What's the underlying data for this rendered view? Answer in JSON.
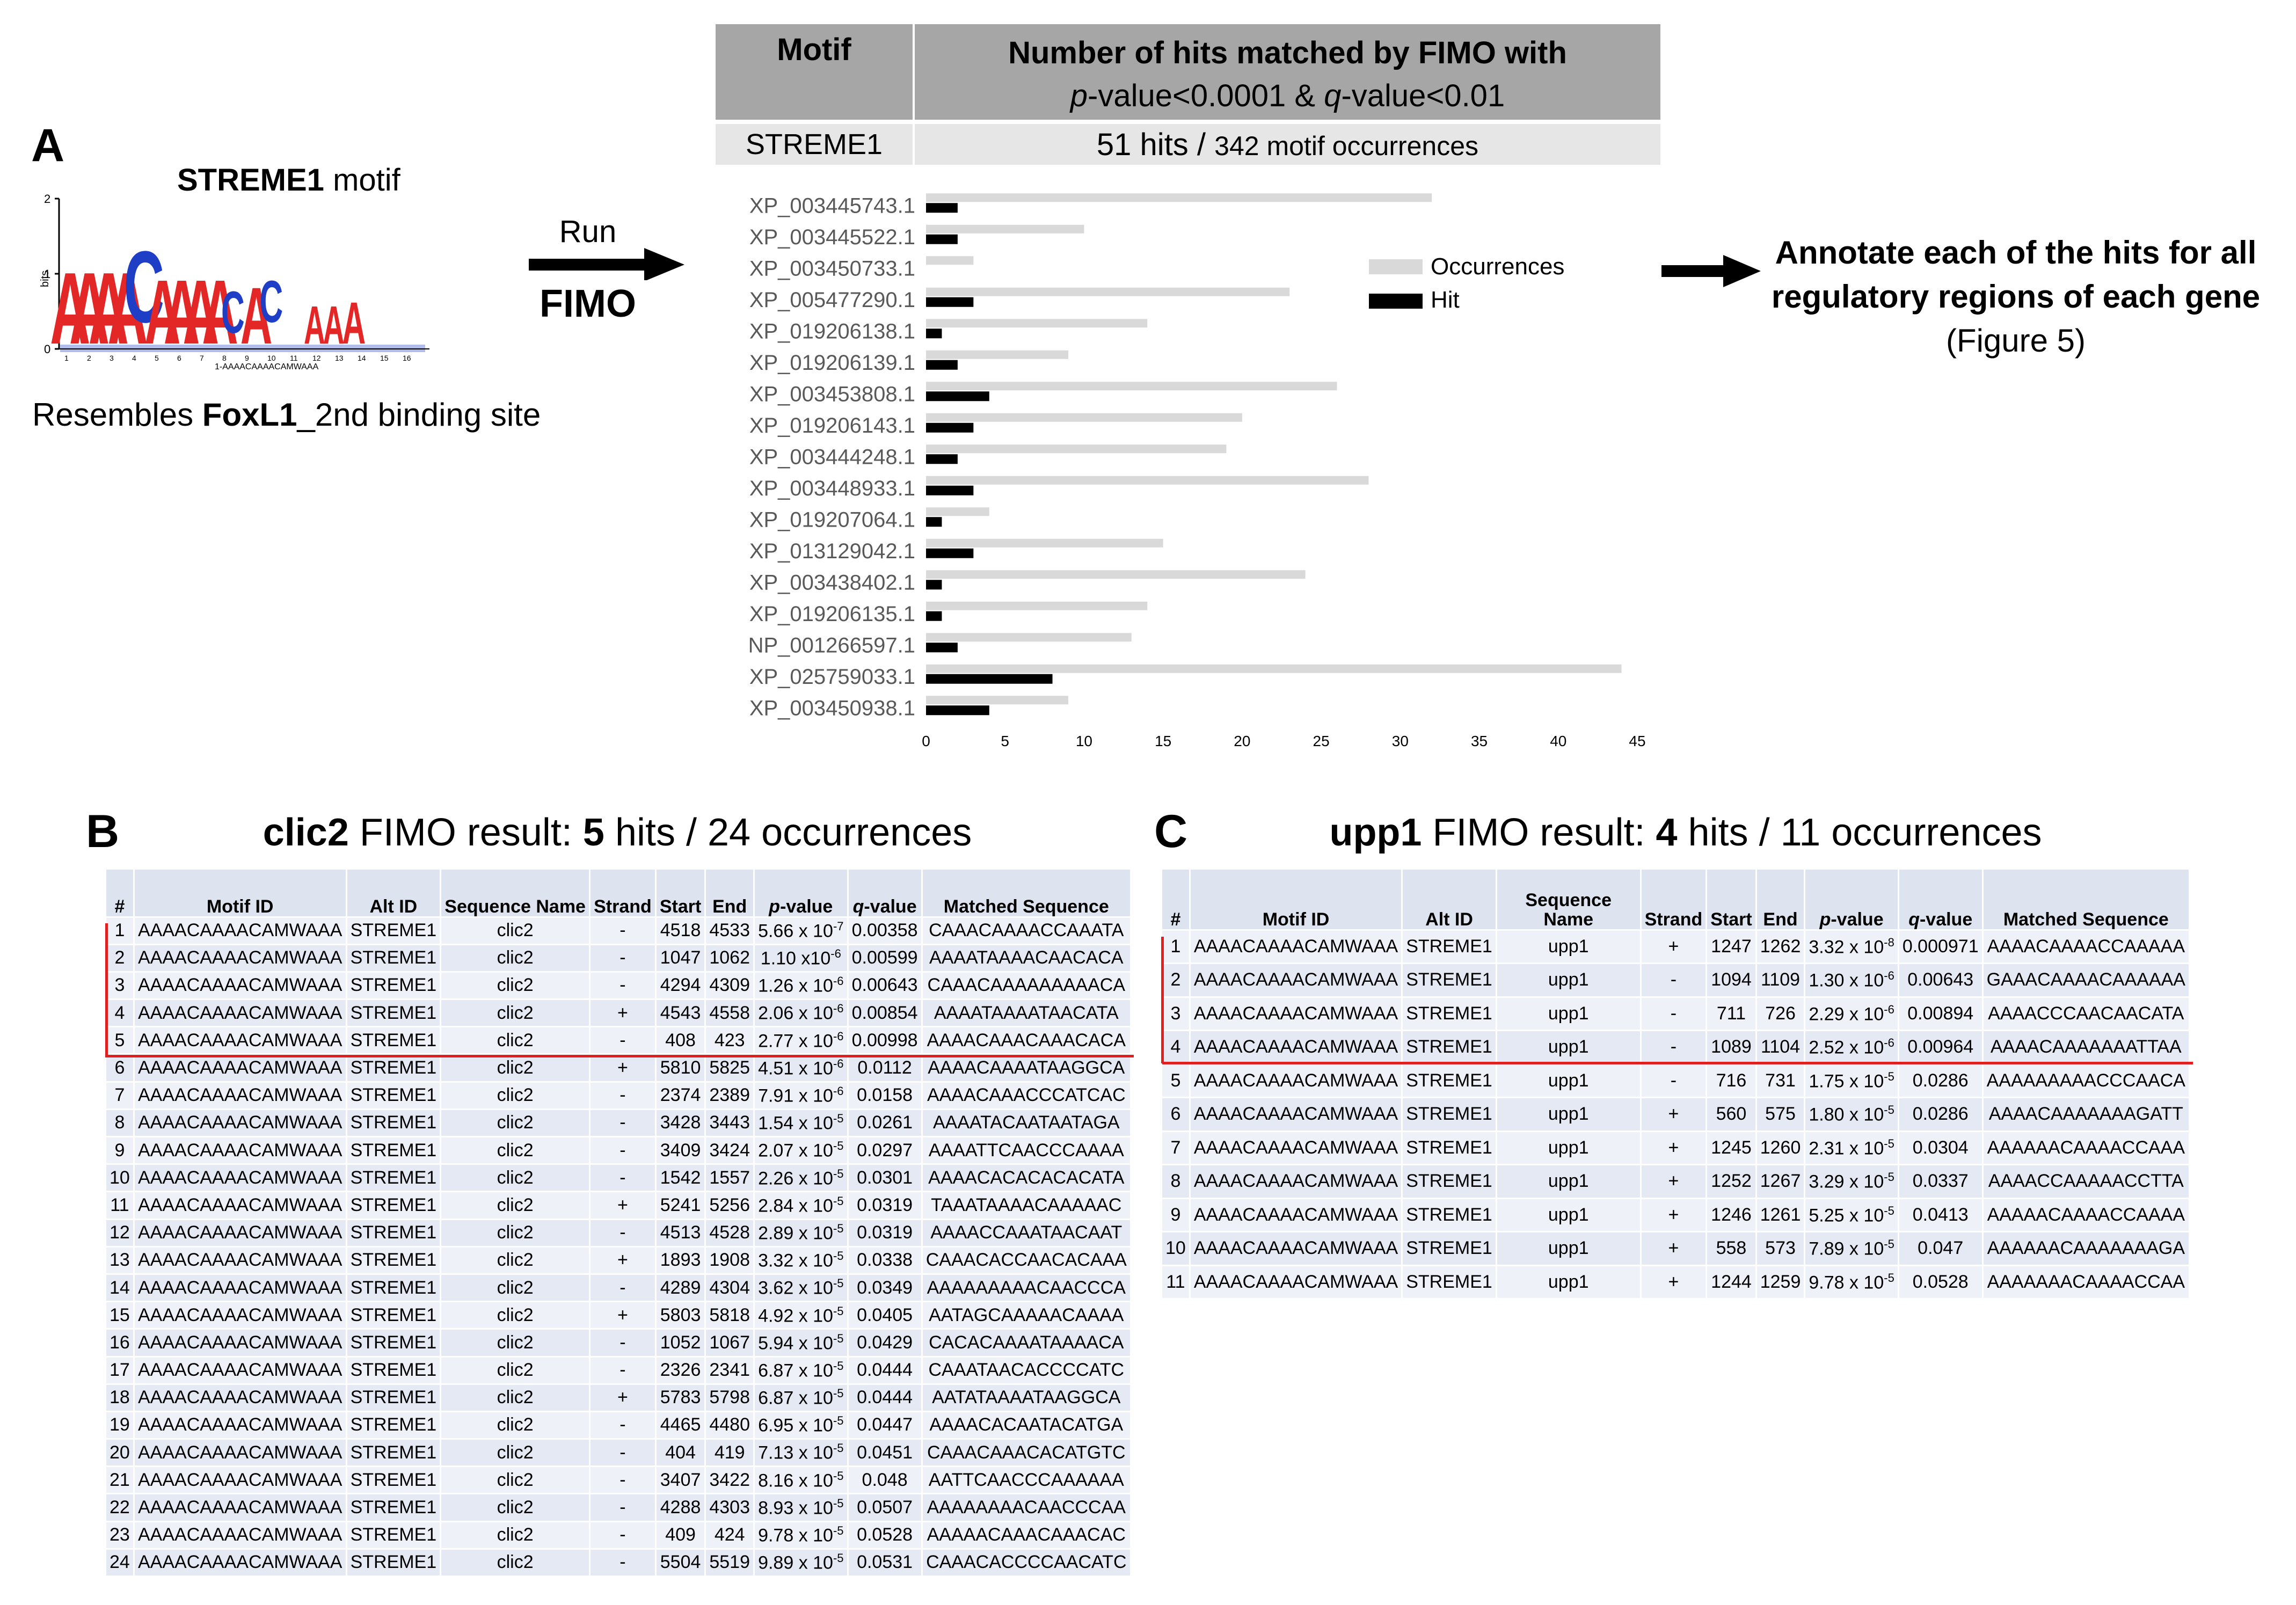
{
  "panel_a": {
    "letter": "A",
    "logo_title_bold": "STREME1",
    "logo_title_rest": " motif",
    "logo_consensus": "1-AAAACAAAACAMWAAA",
    "logo_ylabel": "bits",
    "logo_yticks": [
      "2",
      "1",
      "0"
    ],
    "logo_xticks": [
      "1",
      "2",
      "3",
      "4",
      "5",
      "6",
      "7",
      "8",
      "9",
      "10",
      "11",
      "12",
      "13",
      "14",
      "15",
      "16"
    ],
    "resembles_prefix": "Resembles ",
    "resembles_bold": "FoxL1",
    "resembles_suffix": "_2nd binding site",
    "run_label": "Run",
    "fimo_label": "FIMO",
    "annotate_line1": "Annotate each of the hits for all",
    "annotate_line2": "regulatory regions of each gene",
    "annotate_line3": "(Figure 5)"
  },
  "summary_table": {
    "col1_header": "Motif",
    "col2_header_line1": "Number of hits matched by FIMO with",
    "col2_header_line2_p": "p",
    "col2_header_line2_a": "-value<0.0001 & ",
    "col2_header_line2_q": "q",
    "col2_header_line2_b": "-value<0.01",
    "row_motif": "STREME1",
    "row_hits": "51 hits / ",
    "row_occ": "342 motif occurrences"
  },
  "chart_data": {
    "type": "bar",
    "orientation": "horizontal",
    "categories": [
      "XP_003445743.1",
      "XP_003445522.1",
      "XP_003450733.1",
      "XP_005477290.1",
      "XP_019206138.1",
      "XP_019206139.1",
      "XP_003453808.1",
      "XP_019206143.1",
      "XP_003444248.1",
      "XP_003448933.1",
      "XP_019207064.1",
      "XP_013129042.1",
      "XP_003438402.1",
      "XP_019206135.1",
      "NP_001266597.1",
      "XP_025759033.1",
      "XP_003450938.1"
    ],
    "series": [
      {
        "name": "Occurrences",
        "color": "#d9d9d9",
        "values": [
          32,
          10,
          3,
          23,
          14,
          9,
          26,
          20,
          19,
          28,
          4,
          15,
          24,
          14,
          13,
          44,
          9
        ]
      },
      {
        "name": "Hit",
        "color": "#000000",
        "values": [
          2,
          2,
          0,
          3,
          1,
          2,
          4,
          3,
          2,
          3,
          1,
          3,
          1,
          1,
          2,
          8,
          4
        ]
      }
    ],
    "xlim": [
      0,
      45
    ],
    "xticks": [
      0,
      5,
      10,
      15,
      20,
      25,
      30,
      35,
      40,
      45
    ],
    "legend_position": "right",
    "grid": false
  },
  "panel_b": {
    "letter": "B",
    "title_bold1": "clic2",
    "title_mid": " FIMO result: ",
    "title_bold2": "5",
    "title_end": " hits / 24 occurrences",
    "headers": [
      "#",
      "Motif ID",
      "Alt ID",
      "Sequence Name",
      "Strand",
      "Start",
      "End",
      "p-value",
      "q-value",
      "Matched Sequence"
    ],
    "rows": [
      [
        "1",
        "AAAACAAAACAMWAAA",
        "STREME1",
        "clic2",
        "-",
        "4518",
        "4533",
        "5.66 x 10-7",
        "0.00358",
        "CAAACAAAACCAAATA"
      ],
      [
        "2",
        "AAAACAAAACAMWAAA",
        "STREME1",
        "clic2",
        "-",
        "1047",
        "1062",
        "1.10 x10-6",
        "0.00599",
        "AAAATAAAACAACACA"
      ],
      [
        "3",
        "AAAACAAAACAMWAAA",
        "STREME1",
        "clic2",
        "-",
        "4294",
        "4309",
        "1.26 x 10-6",
        "0.00643",
        "CAAACAAAAAAAAACA"
      ],
      [
        "4",
        "AAAACAAAACAMWAAA",
        "STREME1",
        "clic2",
        "+",
        "4543",
        "4558",
        "2.06 x 10-6",
        "0.00854",
        "AAAATAAAATAACATA"
      ],
      [
        "5",
        "AAAACAAAACAMWAAA",
        "STREME1",
        "clic2",
        "-",
        "408",
        "423",
        "2.77 x 10-6",
        "0.00998",
        "AAAACAAACAAACACA"
      ],
      [
        "6",
        "AAAACAAAACAMWAAA",
        "STREME1",
        "clic2",
        "+",
        "5810",
        "5825",
        "4.51 x 10-6",
        "0.0112",
        "AAAACAAAATAAGGCA"
      ],
      [
        "7",
        "AAAACAAAACAMWAAA",
        "STREME1",
        "clic2",
        "-",
        "2374",
        "2389",
        "7.91 x 10-6",
        "0.0158",
        "AAAACAAACCCATCAC"
      ],
      [
        "8",
        "AAAACAAAACAMWAAA",
        "STREME1",
        "clic2",
        "-",
        "3428",
        "3443",
        "1.54 x 10-5",
        "0.0261",
        "AAAATACAATAATAGA"
      ],
      [
        "9",
        "AAAACAAAACAMWAAA",
        "STREME1",
        "clic2",
        "-",
        "3409",
        "3424",
        "2.07 x 10-5",
        "0.0297",
        "AAAATTCAACCCAAAA"
      ],
      [
        "10",
        "AAAACAAAACAMWAAA",
        "STREME1",
        "clic2",
        "-",
        "1542",
        "1557",
        "2.26 x 10-5",
        "0.0301",
        "AAAACACACACACATA"
      ],
      [
        "11",
        "AAAACAAAACAMWAAA",
        "STREME1",
        "clic2",
        "+",
        "5241",
        "5256",
        "2.84 x 10-5",
        "0.0319",
        "TAAATAAAACAAAAAC"
      ],
      [
        "12",
        "AAAACAAAACAMWAAA",
        "STREME1",
        "clic2",
        "-",
        "4513",
        "4528",
        "2.89 x 10-5",
        "0.0319",
        "AAAACCAAATAACAAT"
      ],
      [
        "13",
        "AAAACAAAACAMWAAA",
        "STREME1",
        "clic2",
        "+",
        "1893",
        "1908",
        "3.32 x 10-5",
        "0.0338",
        "CAAACACCAACACAAA"
      ],
      [
        "14",
        "AAAACAAAACAMWAAA",
        "STREME1",
        "clic2",
        "-",
        "4289",
        "4304",
        "3.62 x 10-5",
        "0.0349",
        "AAAAAAAAACAACCCA"
      ],
      [
        "15",
        "AAAACAAAACAMWAAA",
        "STREME1",
        "clic2",
        "+",
        "5803",
        "5818",
        "4.92 x 10-5",
        "0.0405",
        "AATAGCAAAAACAAAA"
      ],
      [
        "16",
        "AAAACAAAACAMWAAA",
        "STREME1",
        "clic2",
        "-",
        "1052",
        "1067",
        "5.94 x 10-5",
        "0.0429",
        "CACACAAAATAAAACA"
      ],
      [
        "17",
        "AAAACAAAACAMWAAA",
        "STREME1",
        "clic2",
        "-",
        "2326",
        "2341",
        "6.87 x 10-5",
        "0.0444",
        "CAAATAACACCCCATC"
      ],
      [
        "18",
        "AAAACAAAACAMWAAA",
        "STREME1",
        "clic2",
        "+",
        "5783",
        "5798",
        "6.87 x 10-5",
        "0.0444",
        "AATATAAAATAAGGCA"
      ],
      [
        "19",
        "AAAACAAAACAMWAAA",
        "STREME1",
        "clic2",
        "-",
        "4465",
        "4480",
        "6.95 x 10-5",
        "0.0447",
        "AAAACACAATACATGA"
      ],
      [
        "20",
        "AAAACAAAACAMWAAA",
        "STREME1",
        "clic2",
        "-",
        "404",
        "419",
        "7.13 x 10-5",
        "0.0451",
        "CAAACAAACACATGTC"
      ],
      [
        "21",
        "AAAACAAAACAMWAAA",
        "STREME1",
        "clic2",
        "-",
        "3407",
        "3422",
        "8.16 x 10-5",
        "0.048",
        "AATTCAACCCAAAAAA"
      ],
      [
        "22",
        "AAAACAAAACAMWAAA",
        "STREME1",
        "clic2",
        "-",
        "4288",
        "4303",
        "8.93 x 10-5",
        "0.0507",
        "AAAAAAAACAACCCAA"
      ],
      [
        "23",
        "AAAACAAAACAMWAAA",
        "STREME1",
        "clic2",
        "-",
        "409",
        "424",
        "9.78 x 10-5",
        "0.0528",
        "AAAAACAAACAAACAC"
      ],
      [
        "24",
        "AAAACAAAACAMWAAA",
        "STREME1",
        "clic2",
        "-",
        "5504",
        "5519",
        "9.89 x 10-5",
        "0.0531",
        "CAAACACCCCAACATC"
      ]
    ]
  },
  "panel_c": {
    "letter": "C",
    "title_bold1": "upp1",
    "title_mid": " FIMO result: ",
    "title_bold2": "4",
    "title_end": " hits / 11 occurrences",
    "headers": [
      "#",
      "Motif ID",
      "Alt ID",
      "Sequence Name",
      "Strand",
      "Start",
      "End",
      "p-value",
      "q-value",
      "Matched Sequence"
    ],
    "rows": [
      [
        "1",
        "AAAACAAAACAMWAAA",
        "STREME1",
        "upp1",
        "+",
        "1247",
        "1262",
        "3.32 x 10-8",
        "0.000971",
        "AAAACAAAACCAAAAA"
      ],
      [
        "2",
        "AAAACAAAACAMWAAA",
        "STREME1",
        "upp1",
        "-",
        "1094",
        "1109",
        "1.30 x 10-6",
        "0.00643",
        "GAAACAAAACAAAAAA"
      ],
      [
        "3",
        "AAAACAAAACAMWAAA",
        "STREME1",
        "upp1",
        "-",
        "711",
        "726",
        "2.29 x 10-6",
        "0.00894",
        "AAAACCCAACAACATA"
      ],
      [
        "4",
        "AAAACAAAACAMWAAA",
        "STREME1",
        "upp1",
        "-",
        "1089",
        "1104",
        "2.52 x 10-6",
        "0.00964",
        "AAAACAAAAAAATTAA"
      ],
      [
        "5",
        "AAAACAAAACAMWAAA",
        "STREME1",
        "upp1",
        "-",
        "716",
        "731",
        "1.75 x 10-5",
        "0.0286",
        "AAAAAAAAACCCAACA"
      ],
      [
        "6",
        "AAAACAAAACAMWAAA",
        "STREME1",
        "upp1",
        "+",
        "560",
        "575",
        "1.80 x 10-5",
        "0.0286",
        "AAAACAAAAAAAGATT"
      ],
      [
        "7",
        "AAAACAAAACAMWAAA",
        "STREME1",
        "upp1",
        "+",
        "1245",
        "1260",
        "2.31 x 10-5",
        "0.0304",
        "AAAAAACAAAACCAAA"
      ],
      [
        "8",
        "AAAACAAAACAMWAAA",
        "STREME1",
        "upp1",
        "+",
        "1252",
        "1267",
        "3.29 x 10-5",
        "0.0337",
        "AAAACCAAAAACCTTA"
      ],
      [
        "9",
        "AAAACAAAACAMWAAA",
        "STREME1",
        "upp1",
        "+",
        "1246",
        "1261",
        "5.25 x 10-5",
        "0.0413",
        "AAAAACAAAACCAAAA"
      ],
      [
        "10",
        "AAAACAAAACAMWAAA",
        "STREME1",
        "upp1",
        "+",
        "558",
        "573",
        "7.89 x 10-5",
        "0.047",
        "AAAAAACAAAAAAAGA"
      ],
      [
        "11",
        "AAAACAAAACAMWAAA",
        "STREME1",
        "upp1",
        "+",
        "1244",
        "1259",
        "9.78 x 10-5",
        "0.0528",
        "AAAAAAACAAAACCAA"
      ]
    ]
  },
  "colors": {
    "red_line": "#e02020",
    "header_gray": "#a6a6a6",
    "row_gray": "#e6e6e6",
    "table_header": "#dde4ef",
    "table_row": "#eef1f8"
  }
}
